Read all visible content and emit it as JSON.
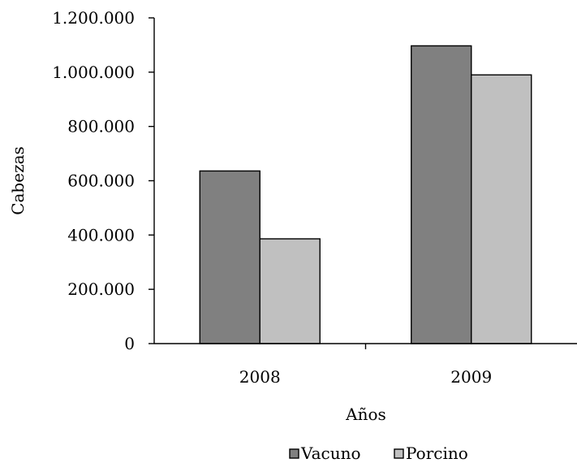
{
  "chart_data": {
    "type": "bar",
    "categories": [
      "2008",
      "2009"
    ],
    "series": [
      {
        "name": "Vacuno",
        "values": [
          636000,
          1097000
        ],
        "color": "#808080"
      },
      {
        "name": "Porcino",
        "values": [
          386000,
          990000
        ],
        "color": "#c0c0c0"
      }
    ],
    "ylabel": "Cabezas",
    "xlabel": "Años",
    "ylim": [
      0,
      1200000
    ],
    "yticks": [
      0,
      200000,
      400000,
      600000,
      800000,
      1000000,
      1200000
    ],
    "ytick_labels": [
      "0",
      "200.000",
      "400.000",
      "600.000",
      "800.000",
      "1.000.000",
      "1.200.000"
    ],
    "grid": false,
    "legend_position": "bottom"
  }
}
